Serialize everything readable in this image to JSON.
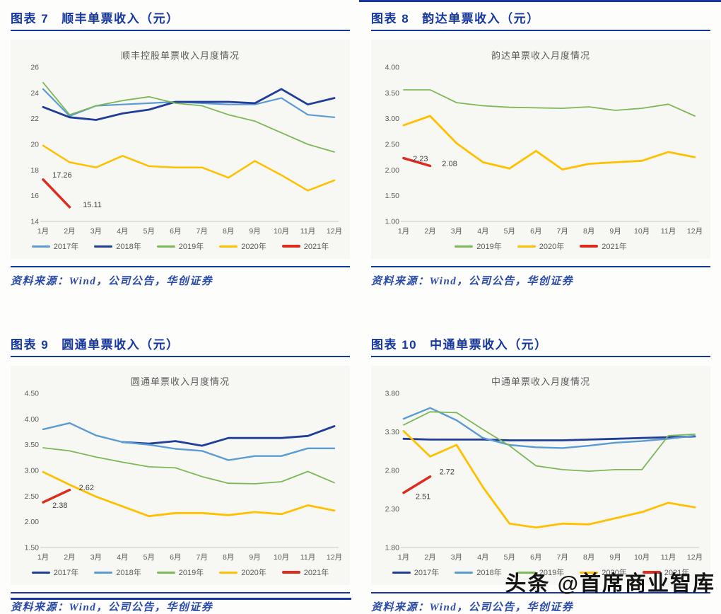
{
  "page": {
    "watermark": "头条 @首席商业智库",
    "source_note": "资料来源：Wind，公司公告，华创证券"
  },
  "colors": {
    "heading_blue": "#15379e",
    "source_blue": "#2b4ba8",
    "axis_gray": "#595959",
    "light_blue": "#5b9bd5",
    "navy": "#1f3d99",
    "green": "#7db857",
    "yellow": "#ffc000",
    "red": "#dd2c1e"
  },
  "chart_data": [
    {
      "type": "line",
      "figure_label": "图表 7",
      "figure_title": "顺丰单票收入（元）",
      "title": "顺丰控股单票收入月度情况",
      "source": "资料来源：Wind，公司公告，华创证券",
      "categories": [
        "1月",
        "2月",
        "3月",
        "4月",
        "5月",
        "6月",
        "7月",
        "8月",
        "9月",
        "10月",
        "11月",
        "12月"
      ],
      "ylim": [
        14,
        26
      ],
      "yticks": [
        "26",
        "24",
        "22",
        "20",
        "18",
        "16",
        "14"
      ],
      "legend_position": "bottom",
      "series": [
        {
          "name": "2017年",
          "color": "#5b9bd5",
          "w": 2.2,
          "values": [
            24.3,
            22.2,
            23.0,
            23.1,
            23.2,
            23.3,
            23.2,
            23.1,
            23.1,
            23.6,
            22.3,
            22.1
          ]
        },
        {
          "name": "2018年",
          "color": "#1f3d99",
          "w": 2.8,
          "values": [
            22.9,
            22.1,
            21.9,
            22.4,
            22.7,
            23.3,
            23.3,
            23.3,
            23.2,
            24.3,
            23.1,
            23.6
          ]
        },
        {
          "name": "2019年",
          "color": "#7db857",
          "w": 1.8,
          "values": [
            24.8,
            22.3,
            23.0,
            23.4,
            23.7,
            23.2,
            23.0,
            22.3,
            21.8,
            20.9,
            20.0,
            19.4
          ]
        },
        {
          "name": "2020年",
          "color": "#ffc000",
          "w": 2.5,
          "values": [
            19.9,
            18.6,
            18.2,
            19.1,
            18.3,
            18.2,
            18.2,
            17.4,
            18.7,
            17.6,
            16.4,
            17.2
          ]
        },
        {
          "name": "2021年",
          "color": "#dd2c1e",
          "w": 3.5,
          "values": [
            17.26,
            15.11,
            null,
            null,
            null,
            null,
            null,
            null,
            null,
            null,
            null,
            null
          ]
        }
      ],
      "annotations": [
        {
          "text": "17.26",
          "mx": 0.35,
          "v": 17.6
        },
        {
          "text": "15.11",
          "mx": 1.5,
          "v": 15.3
        }
      ]
    },
    {
      "type": "line",
      "figure_label": "图表 8",
      "figure_title": "韵达单票收入（元）",
      "title": "韵达单票收入月度情况",
      "source": "资料来源：Wind，公司公告，华创证券",
      "categories": [
        "1月",
        "2月",
        "3月",
        "4月",
        "5月",
        "6月",
        "7月",
        "8月",
        "9月",
        "10月",
        "11月",
        "12月"
      ],
      "ylim": [
        1.0,
        4.0
      ],
      "yticks": [
        "4.00",
        "3.50",
        "3.00",
        "2.50",
        "2.00",
        "1.50",
        "1.00"
      ],
      "legend_position": "bottom",
      "series": [
        {
          "name": "2019年",
          "color": "#7db857",
          "w": 1.8,
          "values": [
            3.56,
            3.56,
            3.31,
            3.25,
            3.22,
            3.21,
            3.2,
            3.23,
            3.16,
            3.2,
            3.28,
            3.05
          ]
        },
        {
          "name": "2020年",
          "color": "#ffc000",
          "w": 2.8,
          "values": [
            2.87,
            3.05,
            2.52,
            2.15,
            2.03,
            2.37,
            2.01,
            2.12,
            2.15,
            2.18,
            2.35,
            2.25
          ]
        },
        {
          "name": "2021年",
          "color": "#dd2c1e",
          "w": 3.5,
          "values": [
            2.23,
            2.08,
            null,
            null,
            null,
            null,
            null,
            null,
            null,
            null,
            null,
            null
          ]
        }
      ],
      "annotations": [
        {
          "text": "2.23",
          "mx": 0.35,
          "v": 2.22
        },
        {
          "text": "2.08",
          "mx": 1.45,
          "v": 2.12
        }
      ]
    },
    {
      "type": "line",
      "figure_label": "图表 9",
      "figure_title": "圆通单票收入（元）",
      "title": "圆通单票收入月度情况",
      "source": "资料来源：Wind，公司公告，华创证券",
      "categories": [
        "1月",
        "2月",
        "3月",
        "4月",
        "5月",
        "6月",
        "7月",
        "8月",
        "9月",
        "10月",
        "11月",
        "12月"
      ],
      "ylim": [
        1.5,
        4.5
      ],
      "yticks": [
        "4.50",
        "4.00",
        "3.50",
        "3.00",
        "2.50",
        "2.00",
        "1.50"
      ],
      "legend_position": "bottom",
      "series": [
        {
          "name": "2017年",
          "color": "#1f3d99",
          "w": 2.8,
          "values": [
            null,
            null,
            null,
            3.55,
            3.52,
            3.57,
            3.48,
            3.63,
            3.63,
            3.63,
            3.67,
            3.86
          ]
        },
        {
          "name": "2018年",
          "color": "#5b9bd5",
          "w": 2.4,
          "values": [
            3.8,
            3.92,
            3.68,
            3.55,
            3.5,
            3.42,
            3.38,
            3.2,
            3.28,
            3.28,
            3.43,
            3.43
          ]
        },
        {
          "name": "2019年",
          "color": "#7db857",
          "w": 1.8,
          "values": [
            3.44,
            3.38,
            3.26,
            3.16,
            3.07,
            3.05,
            2.88,
            2.75,
            2.74,
            2.78,
            2.98,
            2.76
          ]
        },
        {
          "name": "2020年",
          "color": "#ffc000",
          "w": 2.8,
          "values": [
            2.97,
            2.72,
            2.49,
            2.3,
            2.11,
            2.17,
            2.17,
            2.13,
            2.19,
            2.15,
            2.32,
            2.22
          ]
        },
        {
          "name": "2021年",
          "color": "#dd2c1e",
          "w": 3.5,
          "values": [
            2.38,
            2.62,
            null,
            null,
            null,
            null,
            null,
            null,
            null,
            null,
            null,
            null
          ]
        }
      ],
      "annotations": [
        {
          "text": "2.38",
          "mx": 0.35,
          "v": 2.32
        },
        {
          "text": "2.62",
          "mx": 1.35,
          "v": 2.66
        }
      ]
    },
    {
      "type": "line",
      "figure_label": "图表 10",
      "figure_title": "中通单票收入（元）",
      "title": "中通单票收入月度情况",
      "source": "资料来源：Wind，公司公告，华创证券",
      "categories": [
        "1月",
        "2月",
        "3月",
        "4月",
        "5月",
        "6月",
        "7月",
        "8月",
        "9月",
        "10月",
        "11月",
        "12月"
      ],
      "ylim": [
        1.8,
        3.8
      ],
      "yticks": [
        "3.80",
        "3.30",
        "2.80",
        "2.30",
        "1.80"
      ],
      "legend_position": "bottom",
      "series": [
        {
          "name": "2017年",
          "color": "#1f3d99",
          "w": 2.8,
          "values": [
            3.21,
            3.2,
            3.2,
            3.2,
            3.19,
            3.19,
            3.19,
            3.2,
            3.21,
            3.22,
            3.23,
            3.24
          ]
        },
        {
          "name": "2018年",
          "color": "#5b9bd5",
          "w": 2.4,
          "values": [
            3.47,
            3.61,
            3.45,
            3.22,
            3.13,
            3.1,
            3.09,
            3.12,
            3.16,
            3.18,
            3.21,
            3.25
          ]
        },
        {
          "name": "2019年",
          "color": "#7db857",
          "w": 1.8,
          "values": [
            3.39,
            3.56,
            3.55,
            3.33,
            3.12,
            2.86,
            2.81,
            2.79,
            2.81,
            2.81,
            3.25,
            3.27
          ]
        },
        {
          "name": "2020年",
          "color": "#ffc000",
          "w": 2.8,
          "values": [
            3.31,
            2.98,
            3.13,
            2.58,
            2.11,
            2.06,
            2.11,
            2.1,
            2.18,
            2.26,
            2.38,
            2.32
          ]
        },
        {
          "name": "2021年",
          "color": "#dd2c1e",
          "w": 3.5,
          "values": [
            2.51,
            2.72,
            null,
            null,
            null,
            null,
            null,
            null,
            null,
            null,
            null,
            null
          ]
        }
      ],
      "annotations": [
        {
          "text": "2.51",
          "mx": 0.45,
          "v": 2.46
        },
        {
          "text": "2.72",
          "mx": 1.35,
          "v": 2.78
        }
      ]
    }
  ]
}
